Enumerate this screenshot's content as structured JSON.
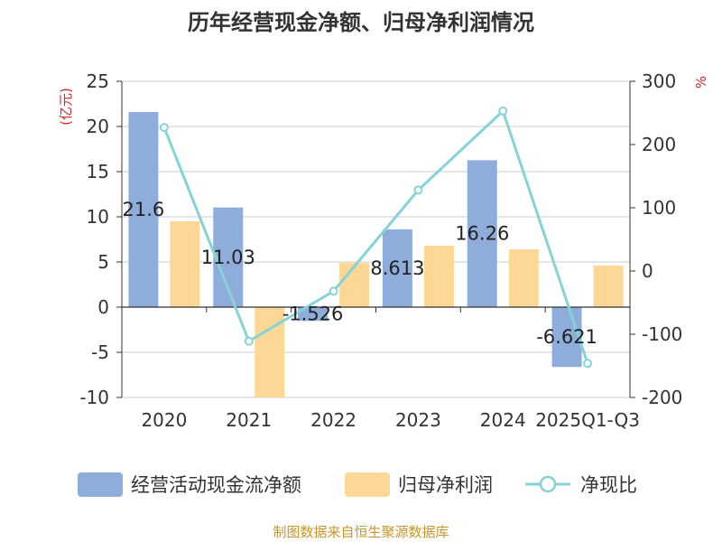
{
  "chart_data": {
    "type": "bar",
    "title": "历年经营现金净额、归母净利润情况",
    "categories": [
      "2020",
      "2021",
      "2022",
      "2023",
      "2024",
      "2025Q1-Q3"
    ],
    "left_unit": "(亿元)",
    "right_unit": "%",
    "ylim_left": [
      -10,
      25
    ],
    "yticks_left": [
      -10,
      -5,
      0,
      5,
      10,
      15,
      20,
      25
    ],
    "ylim_right": [
      -200,
      300
    ],
    "yticks_right": [
      -200,
      -100,
      0,
      100,
      200,
      300
    ],
    "grid": true,
    "legend_position": "bottom",
    "series": [
      {
        "name": "经营活动现金流净额",
        "type": "bar",
        "axis": "left",
        "color": "#8eaddb",
        "values": [
          21.6,
          11.03,
          -1.526,
          8.613,
          16.26,
          -6.621
        ],
        "labels": [
          "21.6",
          "11.03",
          "-1.526",
          "8.613",
          "16.26",
          "-6.621"
        ]
      },
      {
        "name": "归母净利润",
        "type": "bar",
        "axis": "left",
        "color": "#fdd796",
        "values": [
          9.5,
          -10.0,
          4.9,
          6.8,
          6.4,
          4.6
        ]
      },
      {
        "name": "净现比",
        "type": "line",
        "axis": "right",
        "color": "#86d3d7",
        "values": [
          227,
          -111,
          -32,
          128,
          253,
          -146
        ]
      }
    ],
    "source": "制图数据来自恒生聚源数据库"
  }
}
